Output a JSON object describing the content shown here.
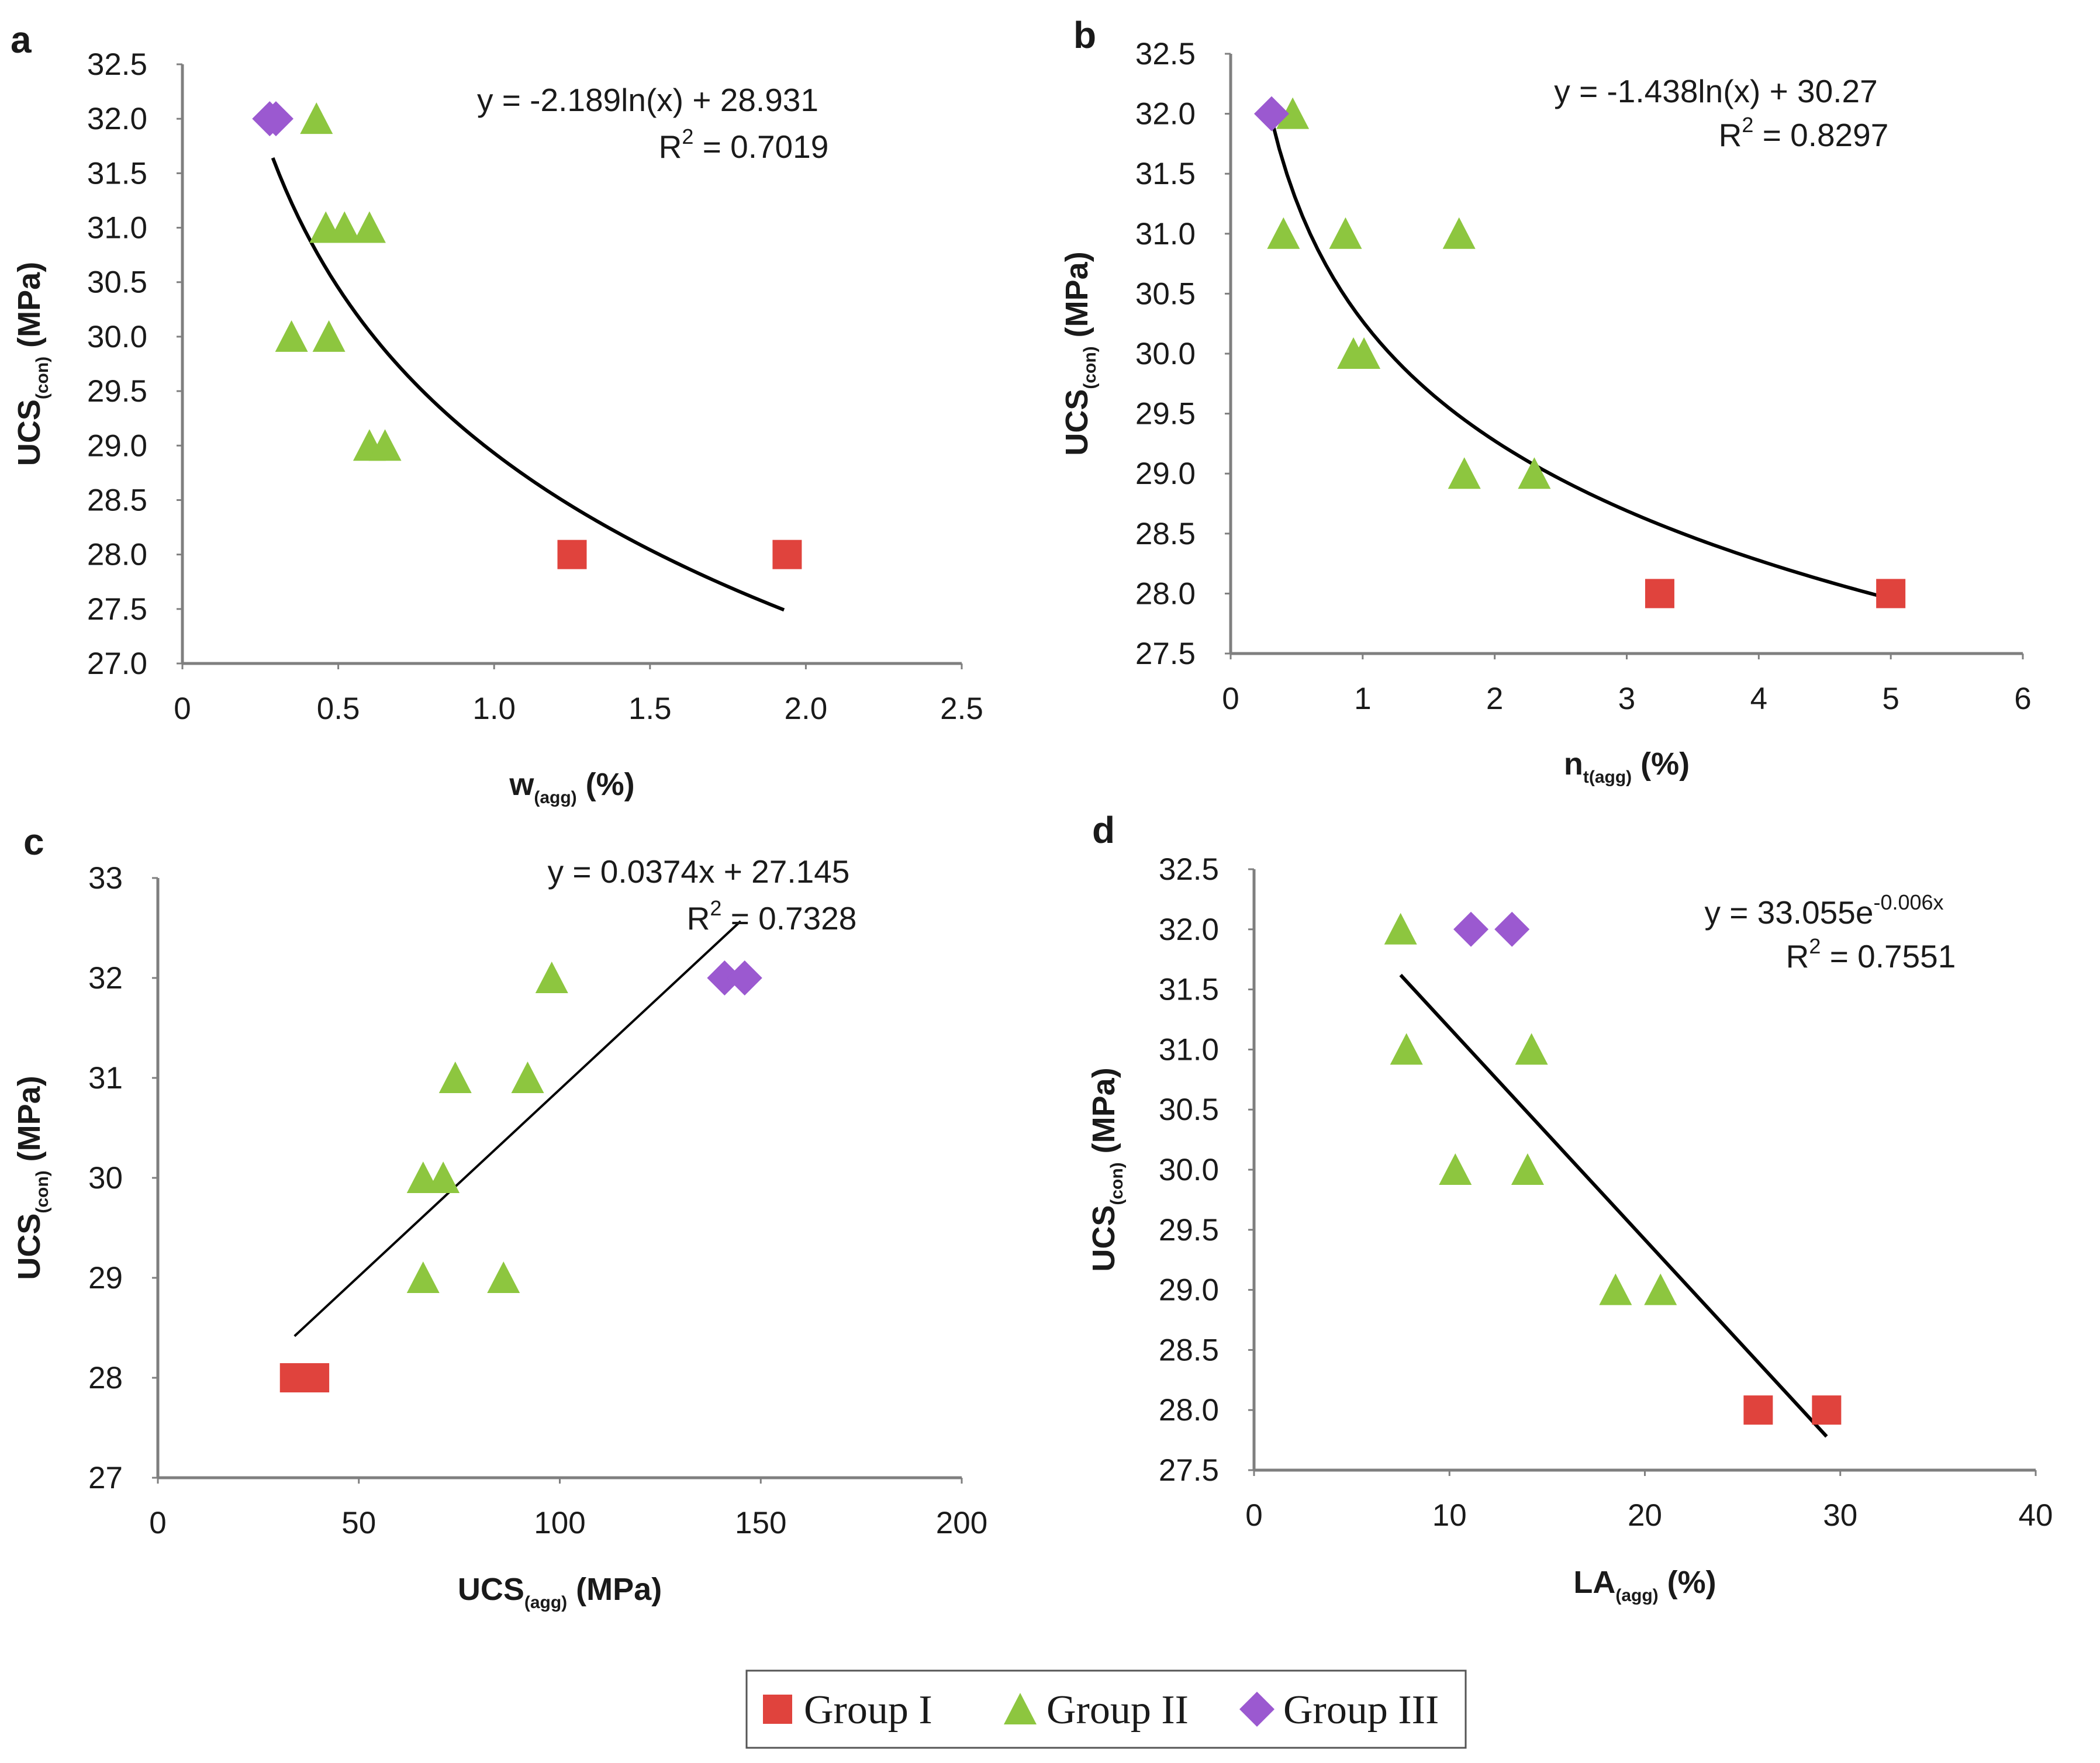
{
  "colors": {
    "group_i": "#e0433d",
    "group_ii": "#8dc63f",
    "group_iii": "#9b59d0",
    "axis": "#7f7f7f",
    "trend": "#000000"
  },
  "legend": {
    "items": [
      {
        "label": "Group I",
        "marker": "square",
        "group": "group_i"
      },
      {
        "label": "Group II",
        "marker": "triangle",
        "group": "group_ii"
      },
      {
        "label": "Group III",
        "marker": "diamond",
        "group": "group_iii"
      }
    ]
  },
  "chart_data": [
    {
      "panel": "a",
      "type": "scatter",
      "xlabel": {
        "main": "w",
        "sub": "(agg)",
        "rest": " (%)"
      },
      "ylabel": {
        "main": "UCS",
        "sub": "(con)",
        "rest": " (MPa)"
      },
      "xlim": [
        0,
        2.5
      ],
      "ylim": [
        27.0,
        32.5
      ],
      "xticks": [
        "0",
        "0.5",
        "1.0",
        "1.5",
        "2.0",
        "2.5"
      ],
      "yticks": [
        "27.0",
        "27.5",
        "28.0",
        "28.5",
        "29.0",
        "29.5",
        "30.0",
        "30.5",
        "31.0",
        "31.5",
        "32.0",
        "32.5"
      ],
      "equation": {
        "text": "y = -2.189ln(x) + 28.931",
        "sup": ""
      },
      "r2": {
        "prefix": "R",
        "sup": "2",
        "value": " = 0.7019"
      },
      "trend": {
        "kind": "log",
        "a": -2.189,
        "b": 28.931,
        "x_range": [
          0.29,
          1.93
        ]
      },
      "series": [
        {
          "name": "Group I",
          "group": "group_i",
          "marker": "square",
          "points": [
            [
              1.25,
              28.0
            ],
            [
              1.94,
              28.0
            ]
          ]
        },
        {
          "name": "Group II",
          "group": "group_ii",
          "marker": "triangle",
          "points": [
            [
              0.43,
              32.0
            ],
            [
              0.46,
              31.0
            ],
            [
              0.52,
              31.0
            ],
            [
              0.6,
              31.0
            ],
            [
              0.35,
              30.0
            ],
            [
              0.47,
              30.0
            ],
            [
              0.6,
              29.0
            ],
            [
              0.65,
              29.0
            ]
          ]
        },
        {
          "name": "Group III",
          "group": "group_iii",
          "marker": "diamond",
          "points": [
            [
              0.28,
              32.0
            ],
            [
              0.3,
              32.0
            ]
          ]
        }
      ]
    },
    {
      "panel": "b",
      "type": "scatter",
      "xlabel": {
        "main": "n",
        "sub": "t(agg)",
        "rest": " (%)"
      },
      "ylabel": {
        "main": "UCS",
        "sub": "(con)",
        "rest": " (MPa)"
      },
      "xlim": [
        0,
        6
      ],
      "ylim": [
        27.5,
        32.5
      ],
      "xticks": [
        "0",
        "1",
        "2",
        "3",
        "4",
        "5",
        "6"
      ],
      "yticks": [
        "27.5",
        "28.0",
        "28.5",
        "29.0",
        "29.5",
        "30.0",
        "30.5",
        "31.0",
        "31.5",
        "32.0",
        "32.5"
      ],
      "equation": {
        "text": "y = -1.438ln(x) + 30.27",
        "sup": ""
      },
      "r2": {
        "prefix": "R",
        "sup": "2",
        "value": " = 0.8297"
      },
      "trend": {
        "kind": "log",
        "a": -1.438,
        "b": 30.27,
        "x_range": [
          0.31,
          5.0
        ]
      },
      "series": [
        {
          "name": "Group I",
          "group": "group_i",
          "marker": "square",
          "points": [
            [
              3.25,
              28.0
            ],
            [
              5.0,
              28.0
            ]
          ]
        },
        {
          "name": "Group II",
          "group": "group_ii",
          "marker": "triangle",
          "points": [
            [
              0.47,
              32.0
            ],
            [
              0.4,
              31.0
            ],
            [
              0.87,
              31.0
            ],
            [
              1.73,
              31.0
            ],
            [
              0.93,
              30.0
            ],
            [
              1.01,
              30.0
            ],
            [
              1.77,
              29.0
            ],
            [
              2.3,
              29.0
            ]
          ]
        },
        {
          "name": "Group III",
          "group": "group_iii",
          "marker": "diamond",
          "points": [
            [
              0.31,
              32.0
            ]
          ]
        }
      ]
    },
    {
      "panel": "c",
      "type": "scatter",
      "xlabel": {
        "main": "UCS",
        "sub": "(agg)",
        "rest": " (MPa)"
      },
      "ylabel": {
        "main": "UCS",
        "sub": "(con)",
        "rest": " (MPa)"
      },
      "xlim": [
        0,
        200
      ],
      "ylim": [
        27,
        33
      ],
      "xticks": [
        "0",
        "50",
        "100",
        "150",
        "200"
      ],
      "yticks": [
        "27",
        "28",
        "29",
        "30",
        "31",
        "32",
        "33"
      ],
      "equation": {
        "text": "y = 0.0374x + 27.145",
        "sup": ""
      },
      "r2": {
        "prefix": "R",
        "sup": "2",
        "value": " = 0.7328"
      },
      "trend": {
        "kind": "linear",
        "a": 0.0374,
        "b": 27.145,
        "x_range": [
          34,
          145
        ]
      },
      "series": [
        {
          "name": "Group I",
          "group": "group_i",
          "marker": "square",
          "points": [
            [
              34,
              28.0
            ],
            [
              39,
              28.0
            ]
          ]
        },
        {
          "name": "Group II",
          "group": "group_ii",
          "marker": "triangle",
          "points": [
            [
              98,
              32.0
            ],
            [
              74,
              31.0
            ],
            [
              92,
              31.0
            ],
            [
              66,
              30.0
            ],
            [
              71,
              30.0
            ],
            [
              66,
              29.0
            ],
            [
              86,
              29.0
            ]
          ]
        },
        {
          "name": "Group III",
          "group": "group_iii",
          "marker": "diamond",
          "points": [
            [
              141,
              32.0
            ],
            [
              146,
              32.0
            ]
          ]
        }
      ]
    },
    {
      "panel": "d",
      "type": "scatter",
      "xlabel": {
        "main": "LA",
        "sub": "(agg)",
        "rest": " (%)"
      },
      "ylabel": {
        "main": "UCS",
        "sub": "(con)",
        "rest": " (MPa)"
      },
      "xlim": [
        0,
        40
      ],
      "ylim": [
        27.5,
        32.5
      ],
      "xticks": [
        "0",
        "10",
        "20",
        "30",
        "40"
      ],
      "yticks": [
        "27.5",
        "28.0",
        "28.5",
        "29.0",
        "29.5",
        "30.0",
        "30.5",
        "31.0",
        "31.5",
        "32.0",
        "32.5"
      ],
      "equation": {
        "text": "y = 33.055e",
        "sup": "-0.006x"
      },
      "r2": {
        "prefix": "R",
        "sup": "2",
        "value": " = 0.7551"
      },
      "trend": {
        "kind": "straight",
        "x_range": [
          7.5,
          29.3
        ],
        "y_range": [
          31.62,
          27.78
        ]
      },
      "series": [
        {
          "name": "Group I",
          "group": "group_i",
          "marker": "square",
          "points": [
            [
              25.8,
              28.0
            ],
            [
              29.3,
              28.0
            ]
          ]
        },
        {
          "name": "Group II",
          "group": "group_ii",
          "marker": "triangle",
          "points": [
            [
              7.5,
              32.0
            ],
            [
              7.8,
              31.0
            ],
            [
              14.2,
              31.0
            ],
            [
              10.3,
              30.0
            ],
            [
              14.0,
              30.0
            ],
            [
              18.5,
              29.0
            ],
            [
              20.8,
              29.0
            ]
          ]
        },
        {
          "name": "Group III",
          "group": "group_iii",
          "marker": "diamond",
          "points": [
            [
              11.1,
              32.0
            ],
            [
              13.2,
              32.0
            ]
          ]
        }
      ]
    }
  ]
}
